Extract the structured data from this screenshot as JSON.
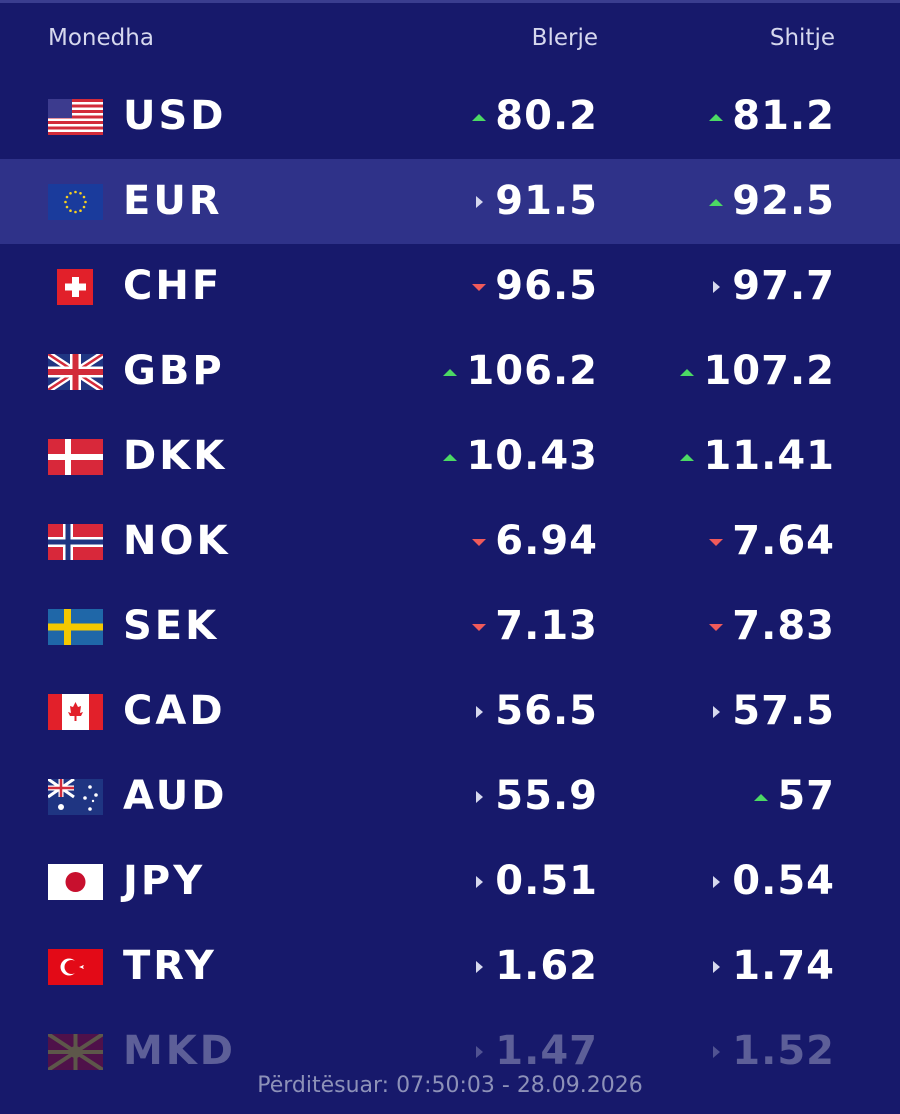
{
  "header": {
    "currency": "Monedha",
    "buy": "Blerje",
    "sell": "Shitje"
  },
  "rows": [
    {
      "code": "USD",
      "buy": "80.2",
      "buy_trend": "up",
      "sell": "81.2",
      "sell_trend": "up"
    },
    {
      "code": "EUR",
      "buy": "91.5",
      "buy_trend": "flat",
      "sell": "92.5",
      "sell_trend": "up"
    },
    {
      "code": "CHF",
      "buy": "96.5",
      "buy_trend": "down",
      "sell": "97.7",
      "sell_trend": "flat"
    },
    {
      "code": "GBP",
      "buy": "106.2",
      "buy_trend": "up",
      "sell": "107.2",
      "sell_trend": "up"
    },
    {
      "code": "DKK",
      "buy": "10.43",
      "buy_trend": "up",
      "sell": "11.41",
      "sell_trend": "up"
    },
    {
      "code": "NOK",
      "buy": "6.94",
      "buy_trend": "down",
      "sell": "7.64",
      "sell_trend": "down"
    },
    {
      "code": "SEK",
      "buy": "7.13",
      "buy_trend": "down",
      "sell": "7.83",
      "sell_trend": "down"
    },
    {
      "code": "CAD",
      "buy": "56.5",
      "buy_trend": "flat",
      "sell": "57.5",
      "sell_trend": "flat"
    },
    {
      "code": "AUD",
      "buy": "55.9",
      "buy_trend": "flat",
      "sell": "57",
      "sell_trend": "up"
    },
    {
      "code": "JPY",
      "buy": "0.51",
      "buy_trend": "flat",
      "sell": "0.54",
      "sell_trend": "flat"
    },
    {
      "code": "TRY",
      "buy": "1.62",
      "buy_trend": "flat",
      "sell": "1.74",
      "sell_trend": "flat"
    },
    {
      "code": "MKD",
      "buy": "1.47",
      "buy_trend": "flat",
      "sell": "1.52",
      "sell_trend": "flat"
    }
  ],
  "footer": "Përditësuar: 07:50:03 - 28.09.2026"
}
